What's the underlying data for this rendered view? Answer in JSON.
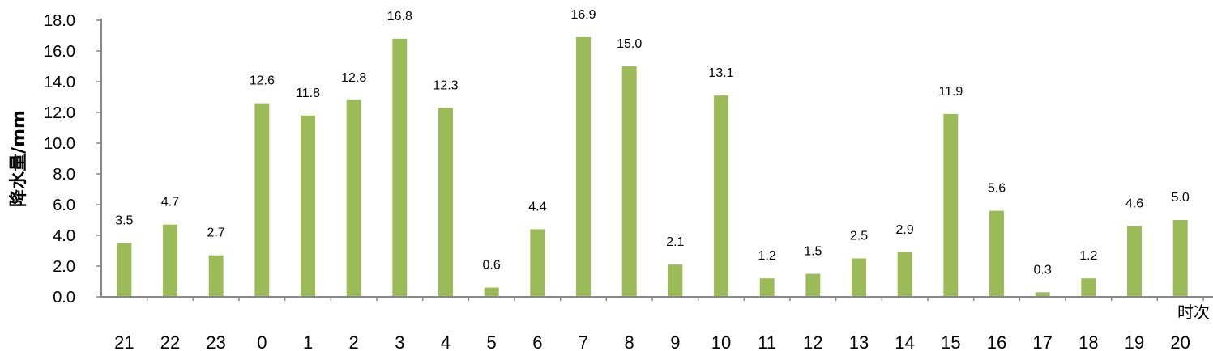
{
  "chart_data": {
    "type": "bar",
    "categories": [
      "21",
      "22",
      "23",
      "0",
      "1",
      "2",
      "3",
      "4",
      "5",
      "6",
      "7",
      "8",
      "9",
      "10",
      "11",
      "12",
      "13",
      "14",
      "15",
      "16",
      "17",
      "18",
      "19",
      "20"
    ],
    "values": [
      3.5,
      4.7,
      2.7,
      12.6,
      11.8,
      12.8,
      16.8,
      12.3,
      0.6,
      4.4,
      16.9,
      15.0,
      2.1,
      13.1,
      1.2,
      1.5,
      2.5,
      2.9,
      11.9,
      5.6,
      0.3,
      1.2,
      4.6,
      5.0
    ],
    "value_labels": [
      "3.5",
      "4.7",
      "2.7",
      "12.6",
      "11.8",
      "12.8",
      "16.8",
      "12.3",
      "0.6",
      "4.4",
      "16.9",
      "15.0",
      "2.1",
      "13.1",
      "1.2",
      "1.5",
      "2.5",
      "2.9",
      "11.9",
      "5.6",
      "0.3",
      "1.2",
      "4.6",
      "5.0"
    ],
    "ylabel": "降水量/mm",
    "xlabel": "时次",
    "ylim": [
      0,
      18
    ],
    "yticks": [
      "0.0",
      "2.0",
      "4.0",
      "6.0",
      "8.0",
      "10.0",
      "12.0",
      "14.0",
      "16.0",
      "18.0"
    ],
    "grid": false,
    "bar_color": "#9bbb59",
    "axis_color": "#888888"
  }
}
